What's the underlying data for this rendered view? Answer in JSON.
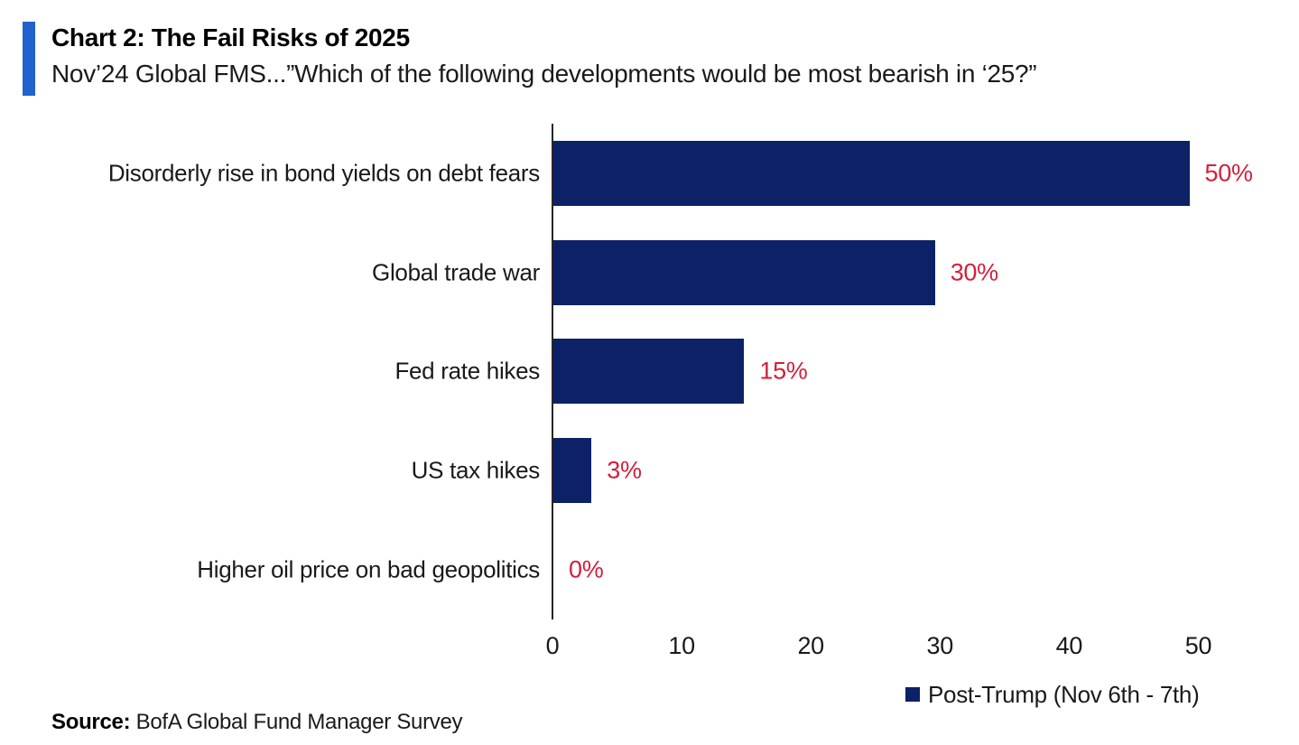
{
  "header": {
    "title": "Chart 2: The Fail Risks of 2025",
    "subtitle": "Nov’24 Global FMS...”Which of the following developments would be most bearish in ‘25?”"
  },
  "chart_data": {
    "type": "bar",
    "orientation": "horizontal",
    "title": "Chart 2: The Fail Risks of 2025",
    "subtitle": "Nov’24 Global FMS...”Which of the following developments would be most bearish in ‘25?”",
    "categories": [
      "Disorderly rise in bond yields on debt fears",
      "Global trade war",
      "Fed rate hikes",
      "US tax hikes",
      "Higher oil price on bad geopolitics"
    ],
    "values": [
      50,
      30,
      15,
      3,
      0
    ],
    "value_labels": [
      "50%",
      "30%",
      "15%",
      "3%",
      "0%"
    ],
    "xticks": [
      0,
      10,
      20,
      30,
      40,
      50
    ],
    "xlim": [
      0,
      55
    ],
    "grid": false,
    "legend": {
      "label": "Post-Trump (Nov 6th - 7th)",
      "position": "inside-bottom-right"
    },
    "colors": {
      "bar": "#0c2166",
      "value_label": "#d2203c",
      "accent": "#2062ce",
      "axis": "#262626"
    }
  },
  "source": {
    "label": "Source:",
    "text": "BofA Global Fund Manager Survey"
  }
}
